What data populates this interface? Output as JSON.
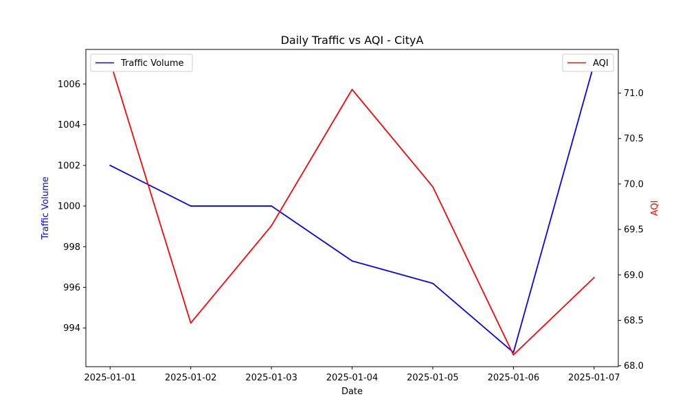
{
  "chart_data": {
    "type": "line",
    "title": "Daily Traffic vs AQI - CityA",
    "xlabel": "Date",
    "categories": [
      "2025-01-01",
      "2025-01-02",
      "2025-01-03",
      "2025-01-04",
      "2025-01-05",
      "2025-01-06",
      "2025-01-07"
    ],
    "left_axis": {
      "label": "Traffic Volume",
      "color": "#0000ff",
      "ylim": [
        992.1,
        1007.7
      ],
      "ticks": [
        994,
        996,
        998,
        1000,
        1002,
        1004,
        1006
      ]
    },
    "right_axis": {
      "label": "AQI",
      "color": "#ff0000",
      "ylim": [
        67.99,
        71.48
      ],
      "ticks": [
        "68.0",
        "68.5",
        "69.0",
        "69.5",
        "70.0",
        "70.5",
        "71.0"
      ]
    },
    "series": [
      {
        "name": "Traffic Volume",
        "axis": "left",
        "color": "#0000ff",
        "values": [
          1002,
          1000,
          1000,
          997.3,
          996.2,
          992.8,
          1007.0
        ]
      },
      {
        "name": "AQI",
        "axis": "right",
        "color": "#ff0000",
        "values": [
          71.35,
          68.47,
          69.54,
          71.04,
          69.97,
          68.12,
          68.97
        ]
      }
    ],
    "legends": [
      {
        "placement": "top-left",
        "entry": "Traffic Volume",
        "color": "#0000ff"
      },
      {
        "placement": "top-right",
        "entry": "AQI",
        "color": "#ff0000"
      }
    ],
    "grid": false
  }
}
